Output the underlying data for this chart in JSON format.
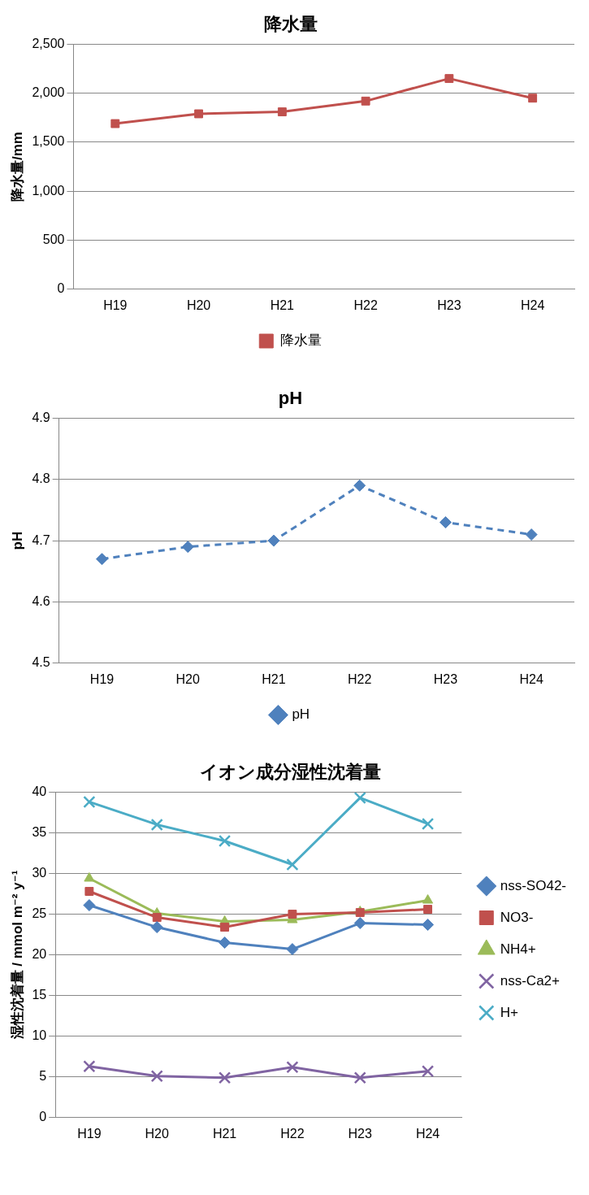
{
  "chart_data": [
    {
      "type": "line",
      "title": "降水量",
      "ylabel": "降水量/mm",
      "categories": [
        "H19",
        "H20",
        "H21",
        "H22",
        "H23",
        "H24"
      ],
      "series": [
        {
          "name": "降水量",
          "color": "#c0504d",
          "values": [
            1690,
            1790,
            1810,
            1920,
            2150,
            1950
          ],
          "marker": "square"
        }
      ],
      "ylim": [
        0,
        2500
      ],
      "yticks": [
        {
          "value": 0,
          "label": "0"
        },
        {
          "value": 500,
          "label": "500"
        },
        {
          "value": 1000,
          "label": "1,000"
        },
        {
          "value": 1500,
          "label": "1,500"
        },
        {
          "value": 2000,
          "label": "2,000"
        },
        {
          "value": 2500,
          "label": "2,500"
        }
      ],
      "grid": "y",
      "legend": "bottom",
      "line_style": "solid"
    },
    {
      "type": "line",
      "title": "pH",
      "ylabel": "pH",
      "categories": [
        "H19",
        "H20",
        "H21",
        "H22",
        "H23",
        "H24"
      ],
      "series": [
        {
          "name": "pH",
          "color": "#4f81bd",
          "values": [
            4.67,
            4.69,
            4.7,
            4.79,
            4.73,
            4.71
          ],
          "marker": "diamond"
        }
      ],
      "ylim": [
        4.5,
        4.9
      ],
      "yticks": [
        {
          "value": 4.5,
          "label": "4.5"
        },
        {
          "value": 4.6,
          "label": "4.6"
        },
        {
          "value": 4.7,
          "label": "4.7"
        },
        {
          "value": 4.8,
          "label": "4.8"
        },
        {
          "value": 4.9,
          "label": "4.9"
        }
      ],
      "grid": "y",
      "legend": "bottom",
      "line_style": "dashed"
    },
    {
      "type": "line",
      "title": "イオン成分湿性沈着量",
      "ylabel": "湿性沈着量 / mmol m⁻² y⁻¹",
      "categories": [
        "H19",
        "H20",
        "H21",
        "H22",
        "H23",
        "H24"
      ],
      "series": [
        {
          "name": "nss-SO42-",
          "color": "#4f81bd",
          "values": [
            26.1,
            23.4,
            21.5,
            20.7,
            23.9,
            23.7
          ],
          "marker": "diamond"
        },
        {
          "name": "NO3-",
          "color": "#c0504d",
          "values": [
            27.8,
            24.6,
            23.4,
            25.0,
            25.2,
            25.6
          ],
          "marker": "square"
        },
        {
          "name": "NH4+",
          "color": "#9bbb59",
          "values": [
            29.4,
            25.1,
            24.1,
            24.3,
            25.3,
            26.7
          ],
          "marker": "triangle"
        },
        {
          "name": "nss-Ca2+",
          "color": "#8064a2",
          "values": [
            6.3,
            5.1,
            4.9,
            6.2,
            4.9,
            5.7
          ],
          "marker": "cross"
        },
        {
          "name": "H+",
          "color": "#4bacc6",
          "values": [
            38.8,
            36.0,
            34.0,
            31.1,
            39.3,
            36.1
          ],
          "marker": "cross"
        }
      ],
      "ylim": [
        0,
        40
      ],
      "yticks": [
        0,
        5,
        10,
        15,
        20,
        25,
        30,
        35,
        40
      ],
      "grid": "y",
      "legend": "right",
      "line_style": "solid"
    }
  ]
}
